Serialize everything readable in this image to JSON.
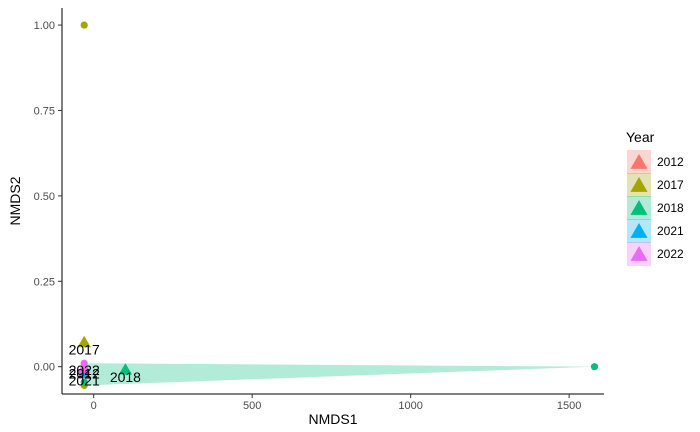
{
  "chart_data": {
    "type": "scatter",
    "xlabel": "NMDS1",
    "ylabel": "NMDS2",
    "xlim": [
      -100,
      1610
    ],
    "ylim": [
      -0.08,
      1.05
    ],
    "x_ticks": [
      0,
      500,
      1000,
      1500
    ],
    "x_tick_labels": [
      "0",
      "500",
      "1000",
      "1500"
    ],
    "y_ticks": [
      0.0,
      0.25,
      0.5,
      0.75,
      1.0
    ],
    "y_tick_labels": [
      "0.00",
      "0.25",
      "0.50",
      "0.75",
      "1.00"
    ],
    "grid": false,
    "legend": {
      "title": "Year",
      "position": "right",
      "entries": [
        {
          "label": "2012",
          "color": "#F8766D"
        },
        {
          "label": "2017",
          "color": "#A3A500"
        },
        {
          "label": "2018",
          "color": "#00BF7D"
        },
        {
          "label": "2021",
          "color": "#00B0F6"
        },
        {
          "label": "2022",
          "color": "#E76BF3"
        }
      ]
    },
    "hulls": [
      {
        "series": "2018",
        "color": "#00BF7D",
        "points": [
          [
            -30,
            0.01
          ],
          [
            1580,
            0.0
          ],
          [
            -30,
            -0.055
          ]
        ]
      }
    ],
    "points": [
      {
        "series": "2017",
        "x": -30,
        "y": 1.0,
        "shape": "circle"
      },
      {
        "series": "2017",
        "x": -30,
        "y": -0.055,
        "shape": "circle"
      },
      {
        "series": "2018",
        "x": 1580,
        "y": 0.0,
        "shape": "circle"
      },
      {
        "series": "2018",
        "x": -30,
        "y": -0.045,
        "shape": "circle"
      },
      {
        "series": "2022",
        "x": -30,
        "y": 0.01,
        "shape": "circle"
      },
      {
        "series": "2021",
        "x": -30,
        "y": -0.02,
        "shape": "circle"
      },
      {
        "series": "2012",
        "x": -30,
        "y": -0.005,
        "shape": "circle"
      }
    ],
    "centroids": [
      {
        "series": "2017",
        "x": -30,
        "y": 0.07
      },
      {
        "series": "2018",
        "x": 100,
        "y": -0.01
      },
      {
        "series": "2012",
        "x": -30,
        "y": -0.01
      },
      {
        "series": "2021",
        "x": -30,
        "y": -0.02
      },
      {
        "series": "2022",
        "x": -30,
        "y": -0.005
      }
    ],
    "annotations": [
      {
        "text": "2017",
        "x": -30,
        "y": 0.05
      },
      {
        "text": "2022",
        "x": -30,
        "y": -0.01
      },
      {
        "text": "2012",
        "x": -30,
        "y": -0.02
      },
      {
        "text": "2021",
        "x": -30,
        "y": -0.04
      },
      {
        "text": "2018",
        "x": 100,
        "y": -0.03
      }
    ]
  }
}
